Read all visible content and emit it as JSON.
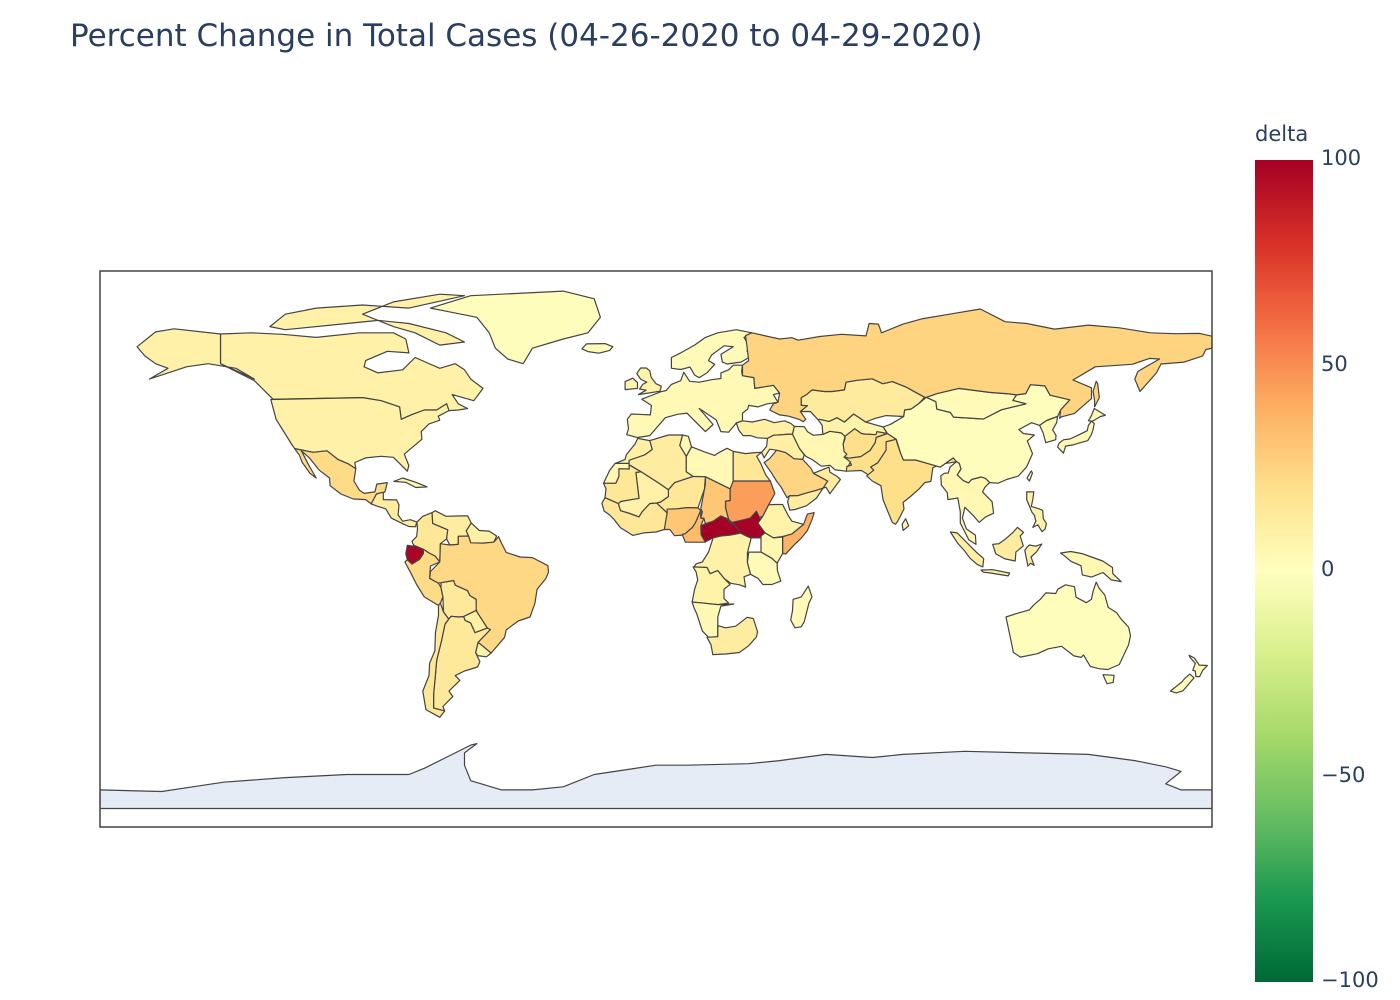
{
  "title": "Percent Change in Total Cases (04-26-2020 to 04-29-2020)",
  "colorbar": {
    "title": "delta",
    "ticks": [
      "100",
      "50",
      "0",
      "−50",
      "−100"
    ],
    "range": [
      -100,
      100
    ],
    "colorscale": "RdYlGn (reversed)",
    "stops": [
      "#006837",
      "#1a9850",
      "#66bd63",
      "#a6d96a",
      "#d9ef8b",
      "#ffffbf",
      "#fee08b",
      "#fdae61",
      "#f46d43",
      "#d73027",
      "#a50026"
    ]
  },
  "chart_data": {
    "type": "choropleth",
    "projection": "equirectangular",
    "value_name": "delta",
    "no_data_color": "#e5ecf6",
    "countries": [
      {
        "name": "Ecuador",
        "delta": 98
      },
      {
        "name": "Central African Republic",
        "delta": 100
      },
      {
        "name": "South Sudan",
        "delta": 100
      },
      {
        "name": "Sudan",
        "delta": 45
      },
      {
        "name": "Somalia",
        "delta": 38
      },
      {
        "name": "Russia",
        "delta": 25
      },
      {
        "name": "Brazil",
        "delta": 23
      },
      {
        "name": "Peru",
        "delta": 22
      },
      {
        "name": "Mexico",
        "delta": 22
      },
      {
        "name": "India",
        "delta": 20
      },
      {
        "name": "Saudi Arabia",
        "delta": 24
      },
      {
        "name": "Chad",
        "delta": 30
      },
      {
        "name": "Niger",
        "delta": 15
      },
      {
        "name": "Nigeria",
        "delta": 30
      },
      {
        "name": "Cameroon",
        "delta": 35
      },
      {
        "name": "Egypt",
        "delta": 15
      },
      {
        "name": "Algeria",
        "delta": 12
      },
      {
        "name": "Argentina",
        "delta": 14
      },
      {
        "name": "Chile",
        "delta": 15
      },
      {
        "name": "Colombia",
        "delta": 15
      },
      {
        "name": "Bolivia",
        "delta": 14
      },
      {
        "name": "Venezuela",
        "delta": 12
      },
      {
        "name": "Kazakhstan",
        "delta": 13
      },
      {
        "name": "Pakistan",
        "delta": 20
      },
      {
        "name": "Afghanistan",
        "delta": 20
      },
      {
        "name": "Iran",
        "delta": 5
      },
      {
        "name": "Turkey",
        "delta": 10
      },
      {
        "name": "United States",
        "delta": 9
      },
      {
        "name": "Canada",
        "delta": 9
      },
      {
        "name": "Greenland",
        "delta": 1
      },
      {
        "name": "China",
        "delta": 1
      },
      {
        "name": "Mongolia",
        "delta": 3
      },
      {
        "name": "Australia",
        "delta": 1
      },
      {
        "name": "New Zealand",
        "delta": 2
      },
      {
        "name": "South Africa",
        "delta": 12
      },
      {
        "name": "DR Congo",
        "delta": 9
      },
      {
        "name": "Angola",
        "delta": 8
      },
      {
        "name": "Namibia",
        "delta": 4
      },
      {
        "name": "Ethiopia",
        "delta": 8
      },
      {
        "name": "Kenya",
        "delta": 6
      },
      {
        "name": "Tanzania",
        "delta": 3
      },
      {
        "name": "Madagascar",
        "delta": 3
      },
      {
        "name": "Libya",
        "delta": 4
      },
      {
        "name": "Mali",
        "delta": 9
      },
      {
        "name": "Mauritania",
        "delta": 15
      },
      {
        "name": "Western Sahara",
        "delta": 5
      },
      {
        "name": "Morocco",
        "delta": 10
      },
      {
        "name": "Indonesia",
        "delta": 10
      },
      {
        "name": "Japan",
        "delta": 4
      },
      {
        "name": "Europe",
        "delta": 4
      },
      {
        "name": "Scandinavia",
        "delta": 3
      },
      {
        "name": "Antarctica",
        "delta": null
      }
    ]
  }
}
